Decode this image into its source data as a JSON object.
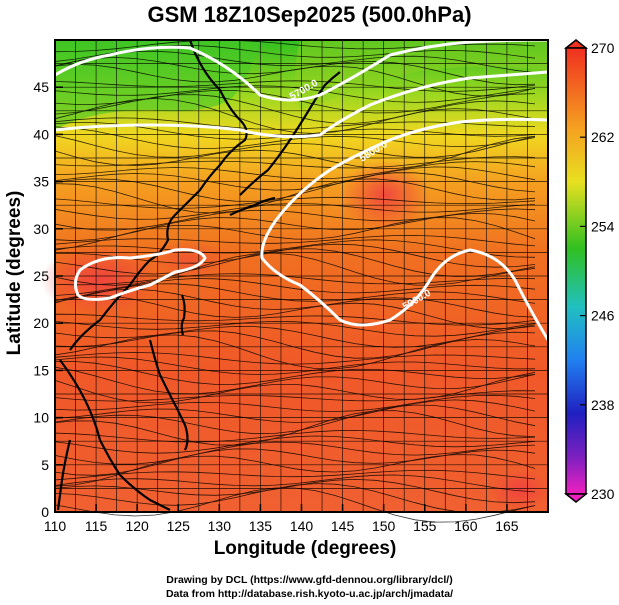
{
  "title": "GSM 18Z10Sep2025 (500.0hPa)",
  "x_axis_title": "Longitude (degrees)",
  "y_axis_title": "Latitude  (degrees)",
  "credits": [
    "Drawing by DCL (https://www.gfd-dennou.org/library/dcl/)",
    "Data from http://database.rish.kyoto-u.ac.jp/arch/jmadata/"
  ],
  "map": {
    "lon_range": [
      110,
      170
    ],
    "lat_range": [
      0,
      50
    ],
    "lon_ticks": [
      "110",
      "115",
      "120",
      "125",
      "130",
      "135",
      "140",
      "145",
      "150",
      "155",
      "160",
      "165"
    ],
    "lat_ticks": [
      "0",
      "5",
      "10",
      "15",
      "20",
      "25",
      "30",
      "35",
      "40",
      "45"
    ],
    "colorbar_ticks": [
      "270",
      "262",
      "254",
      "246",
      "238",
      "230"
    ],
    "colorbar_range": [
      230,
      270
    ],
    "contour_labels": [
      "5700.0",
      "5800.0",
      "5900.0"
    ],
    "colors": {
      "warm_red": "#f05030",
      "orange": "#f5a020",
      "yellow": "#e8e020",
      "green": "#40c020",
      "contour": "#ffffff"
    }
  },
  "chart_data": {
    "type": "heatmap",
    "title": "GSM 18Z10Sep2025 (500.0hPa)",
    "xlabel": "Longitude (degrees)",
    "ylabel": "Latitude  (degrees)",
    "xlim": [
      110,
      170
    ],
    "ylim": [
      0,
      50
    ],
    "colorbar": {
      "min": 230,
      "max": 270,
      "ticks": [
        270,
        262,
        254,
        246,
        238,
        230
      ]
    },
    "contours": [
      5700.0,
      5800.0,
      5900.0
    ]
  }
}
